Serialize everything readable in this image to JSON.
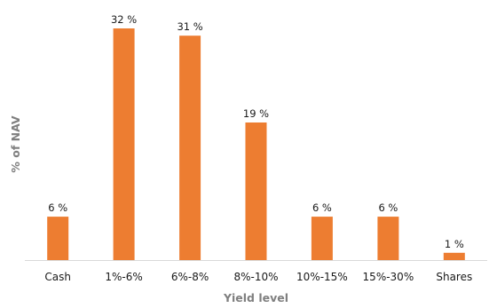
{
  "chart_data": {
    "type": "bar",
    "categories": [
      "Cash",
      "1%-6%",
      "6%-8%",
      "8%-10%",
      "10%-15%",
      "15%-30%",
      "Shares"
    ],
    "values": [
      6,
      32,
      31,
      19,
      6,
      6,
      1
    ],
    "data_labels": [
      "6 %",
      "32 %",
      "31 %",
      "19 %",
      "6 %",
      "6 %",
      "1 %"
    ],
    "xlabel": "Yield level",
    "ylabel": "% of NAV",
    "ylim": [
      0,
      32
    ],
    "grid": false,
    "legend": "none",
    "bar_color": "#ED7D31",
    "axis_color": "#D9D9D9"
  }
}
